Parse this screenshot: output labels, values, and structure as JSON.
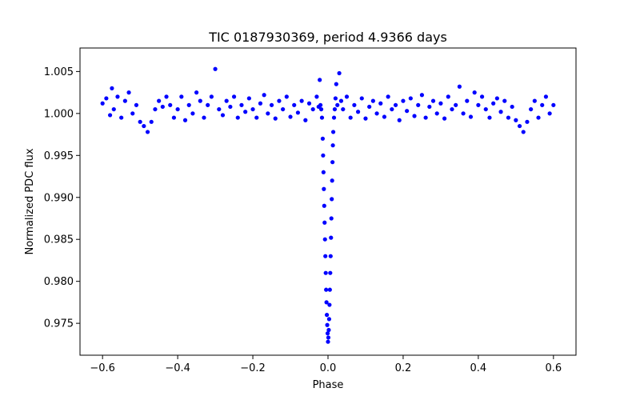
{
  "chart_data": {
    "type": "scatter",
    "title": "TIC 0187930369, period 4.9366 days",
    "xlabel": "Phase",
    "ylabel": "Normalized PDC flux",
    "xlim": [
      -0.66,
      0.66
    ],
    "ylim": [
      0.9712,
      1.0078
    ],
    "xticks": [
      {
        "value": -0.6,
        "label": "−0.6"
      },
      {
        "value": -0.4,
        "label": "−0.4"
      },
      {
        "value": -0.2,
        "label": "−0.2"
      },
      {
        "value": 0.0,
        "label": "0.0"
      },
      {
        "value": 0.2,
        "label": "0.2"
      },
      {
        "value": 0.4,
        "label": "0.4"
      },
      {
        "value": 0.6,
        "label": "0.6"
      }
    ],
    "yticks": [
      {
        "value": 0.975,
        "label": "0.975"
      },
      {
        "value": 0.98,
        "label": "0.980"
      },
      {
        "value": 0.985,
        "label": "0.985"
      },
      {
        "value": 0.99,
        "label": "0.990"
      },
      {
        "value": 0.995,
        "label": "0.995"
      },
      {
        "value": 1.0,
        "label": "1.000"
      },
      {
        "value": 1.005,
        "label": "1.005"
      }
    ],
    "grid": false,
    "marker_color": "#0000ff",
    "series": [
      {
        "points": [
          [
            -0.6,
            1.0012
          ],
          [
            -0.59,
            1.0018
          ],
          [
            -0.58,
            0.9998
          ],
          [
            -0.575,
            1.003
          ],
          [
            -0.57,
            1.0005
          ],
          [
            -0.56,
            1.002
          ],
          [
            -0.55,
            0.9995
          ],
          [
            -0.54,
            1.0015
          ],
          [
            -0.53,
            1.0025
          ],
          [
            -0.52,
            1.0
          ],
          [
            -0.51,
            1.001
          ],
          [
            -0.5,
            0.999
          ],
          [
            -0.49,
            0.9985
          ],
          [
            -0.48,
            0.9978
          ],
          [
            -0.47,
            0.999
          ],
          [
            -0.46,
            1.0005
          ],
          [
            -0.45,
            1.0015
          ],
          [
            -0.44,
            1.0008
          ],
          [
            -0.43,
            1.002
          ],
          [
            -0.42,
            1.001
          ],
          [
            -0.41,
            0.9995
          ],
          [
            -0.4,
            1.0005
          ],
          [
            -0.39,
            1.002
          ],
          [
            -0.38,
            0.9992
          ],
          [
            -0.37,
            1.001
          ],
          [
            -0.36,
            1.0
          ],
          [
            -0.35,
            1.0025
          ],
          [
            -0.34,
            1.0015
          ],
          [
            -0.33,
            0.9995
          ],
          [
            -0.32,
            1.001
          ],
          [
            -0.31,
            1.002
          ],
          [
            -0.3,
            1.0053
          ],
          [
            -0.29,
            1.0005
          ],
          [
            -0.28,
            0.9998
          ],
          [
            -0.27,
            1.0015
          ],
          [
            -0.26,
            1.0008
          ],
          [
            -0.25,
            1.002
          ],
          [
            -0.24,
            0.9995
          ],
          [
            -0.23,
            1.001
          ],
          [
            -0.22,
            1.0002
          ],
          [
            -0.21,
            1.0018
          ],
          [
            -0.2,
            1.0005
          ],
          [
            -0.19,
            0.9995
          ],
          [
            -0.18,
            1.0012
          ],
          [
            -0.17,
            1.0022
          ],
          [
            -0.16,
            1.0
          ],
          [
            -0.15,
            1.001
          ],
          [
            -0.14,
            0.9994
          ],
          [
            -0.13,
            1.0015
          ],
          [
            -0.12,
            1.0005
          ],
          [
            -0.11,
            1.002
          ],
          [
            -0.1,
            0.9996
          ],
          [
            -0.09,
            1.001
          ],
          [
            -0.08,
            1.0001
          ],
          [
            -0.07,
            1.0015
          ],
          [
            -0.06,
            0.9992
          ],
          [
            -0.05,
            1.0012
          ],
          [
            -0.04,
            1.0005
          ],
          [
            -0.03,
            1.002
          ],
          [
            -0.025,
            1.0008
          ],
          [
            -0.022,
            1.004
          ],
          [
            -0.02,
            1.001
          ],
          [
            -0.018,
            1.0005
          ],
          [
            -0.016,
            0.9995
          ],
          [
            -0.014,
            0.997
          ],
          [
            -0.013,
            0.995
          ],
          [
            -0.012,
            0.993
          ],
          [
            -0.011,
            0.991
          ],
          [
            -0.01,
            0.989
          ],
          [
            -0.009,
            0.987
          ],
          [
            -0.008,
            0.985
          ],
          [
            -0.007,
            0.983
          ],
          [
            -0.006,
            0.981
          ],
          [
            -0.005,
            0.979
          ],
          [
            -0.004,
            0.9775
          ],
          [
            -0.003,
            0.976
          ],
          [
            -0.002,
            0.9748
          ],
          [
            -0.001,
            0.9738
          ],
          [
            0.0,
            0.9728
          ],
          [
            0.001,
            0.9733
          ],
          [
            0.002,
            0.9742
          ],
          [
            0.003,
            0.9755
          ],
          [
            0.004,
            0.9772
          ],
          [
            0.005,
            0.979
          ],
          [
            0.006,
            0.981
          ],
          [
            0.007,
            0.983
          ],
          [
            0.008,
            0.9852
          ],
          [
            0.009,
            0.9875
          ],
          [
            0.01,
            0.9898
          ],
          [
            0.011,
            0.992
          ],
          [
            0.012,
            0.9942
          ],
          [
            0.013,
            0.9962
          ],
          [
            0.014,
            0.9978
          ],
          [
            0.016,
            0.9995
          ],
          [
            0.018,
            1.0005
          ],
          [
            0.02,
            1.0018
          ],
          [
            0.022,
            1.0035
          ],
          [
            0.025,
            1.001
          ],
          [
            0.03,
            1.0048
          ],
          [
            0.035,
            1.0015
          ],
          [
            0.04,
            1.0005
          ],
          [
            0.05,
            1.002
          ],
          [
            0.06,
            0.9995
          ],
          [
            0.07,
            1.001
          ],
          [
            0.08,
            1.0002
          ],
          [
            0.09,
            1.0018
          ],
          [
            0.1,
            0.9994
          ],
          [
            0.11,
            1.0008
          ],
          [
            0.12,
            1.0015
          ],
          [
            0.13,
            1.0
          ],
          [
            0.14,
            1.0012
          ],
          [
            0.15,
            0.9996
          ],
          [
            0.16,
            1.002
          ],
          [
            0.17,
            1.0005
          ],
          [
            0.18,
            1.001
          ],
          [
            0.19,
            0.9992
          ],
          [
            0.2,
            1.0015
          ],
          [
            0.21,
            1.0003
          ],
          [
            0.22,
            1.0018
          ],
          [
            0.23,
            0.9997
          ],
          [
            0.24,
            1.001
          ],
          [
            0.25,
            1.0022
          ],
          [
            0.26,
            0.9995
          ],
          [
            0.27,
            1.0008
          ],
          [
            0.28,
            1.0015
          ],
          [
            0.29,
            1.0
          ],
          [
            0.3,
            1.0012
          ],
          [
            0.31,
            0.9994
          ],
          [
            0.32,
            1.002
          ],
          [
            0.33,
            1.0005
          ],
          [
            0.34,
            1.001
          ],
          [
            0.35,
            1.0032
          ],
          [
            0.36,
            1.0
          ],
          [
            0.37,
            1.0015
          ],
          [
            0.38,
            0.9996
          ],
          [
            0.39,
            1.0025
          ],
          [
            0.4,
            1.001
          ],
          [
            0.41,
            1.002
          ],
          [
            0.42,
            1.0005
          ],
          [
            0.43,
            0.9995
          ],
          [
            0.44,
            1.0012
          ],
          [
            0.45,
            1.0018
          ],
          [
            0.46,
            1.0002
          ],
          [
            0.47,
            1.0015
          ],
          [
            0.48,
            0.9995
          ],
          [
            0.49,
            1.0008
          ],
          [
            0.5,
            0.9992
          ],
          [
            0.51,
            0.9985
          ],
          [
            0.52,
            0.9978
          ],
          [
            0.53,
            0.999
          ],
          [
            0.54,
            1.0005
          ],
          [
            0.55,
            1.0015
          ],
          [
            0.56,
            0.9995
          ],
          [
            0.57,
            1.001
          ],
          [
            0.58,
            1.002
          ],
          [
            0.59,
            1.0
          ],
          [
            0.6,
            1.001
          ]
        ]
      }
    ]
  }
}
